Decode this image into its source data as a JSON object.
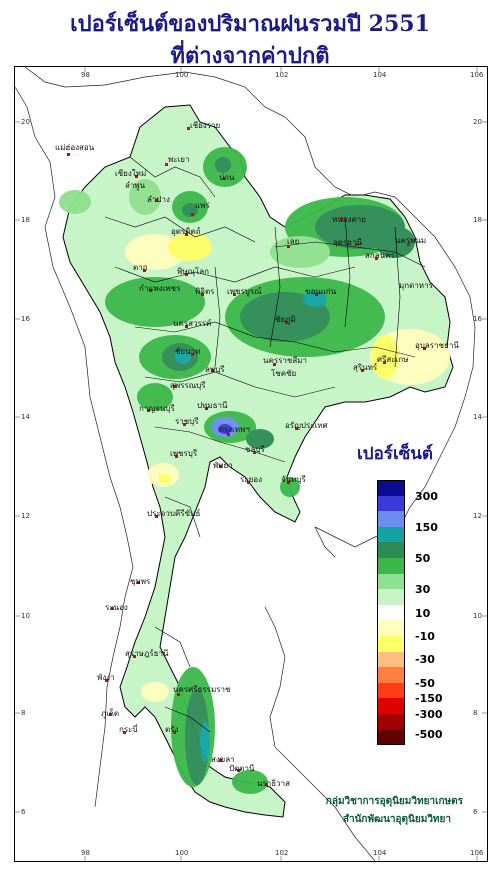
{
  "title_line1": "เปอร์เซ็นต์ของปริมาณฝนรวมปี  2551",
  "title_line2": "ที่ต่างจากค่าปกติ",
  "longitude_ticks": [
    "98",
    "100",
    "102",
    "104",
    "106"
  ],
  "latitude_ticks": [
    "20",
    "18",
    "16",
    "14",
    "12",
    "10",
    "8",
    "6"
  ],
  "legend": {
    "title": "เปอร์เซ็นต์",
    "levels": [
      "300",
      "150",
      "50",
      "30",
      "10",
      "-10",
      "-30",
      "-50",
      "-150",
      "-300",
      "-500"
    ],
    "colors": [
      "#0b0b8f",
      "#3a3ad8",
      "#6e8cf0",
      "#13a3a3",
      "#2e8b57",
      "#3cb84a",
      "#8fe08f",
      "#c8f5c8",
      "#ffffff",
      "#ffffc0",
      "#ffff66",
      "#ffbf80",
      "#ff8040",
      "#ff3b1a",
      "#e00000",
      "#a00000",
      "#600000"
    ]
  },
  "places": [
    "เชียงราย",
    "แม่ฮ่องสอน",
    "เชียงใหม่",
    "ลำพูน",
    "พะเยา",
    "น่าน",
    "ลำปาง",
    "แพร่",
    "อุตรดิตถ์",
    "หนองคาย",
    "อุดรธานี",
    "นครพนม",
    "สกลนคร",
    "มุกดาหาร",
    "เลย",
    "ตาก",
    "พิษณุโลก",
    "กำแพงเพชร",
    "พิจิตร",
    "เพชรบูรณ์",
    "ขอนแก่น",
    "ชัยภูมิ",
    "นครสวรรค์",
    "อุบลราชธานี",
    "ศรีสะเกษ",
    "สุรินทร์",
    "ชัยนาท",
    "ลพบุรี",
    "นครราชสีมา",
    "โชคชัย",
    "สุพรรณบุรี",
    "กาญจนบุรี",
    "ปทุมธานี",
    "ราชบุรี",
    "อรัญประเทศ",
    "กรุงเทพฯ",
    "ชลบุรี",
    "เพชรบุรี",
    "พัทยา",
    "ระยอง",
    "จันทบุรี",
    "ประจวบคีรีขันธ์",
    "ชุมพร",
    "ระนอง",
    "นครศรีธรรมราช",
    "สุราษฎร์ธานี",
    "ตรัง",
    "พังงา",
    "ภูเก็ต",
    "กระบี่",
    "สงขลา",
    "ปัตตานี",
    "นราธิวาส"
  ],
  "credit_line1": "กลุ่มวิชาการอุตุนิยมวิทยาเกษตร",
  "credit_line2": "สำนักพัฒนาอุตุนิยมวิทยา"
}
